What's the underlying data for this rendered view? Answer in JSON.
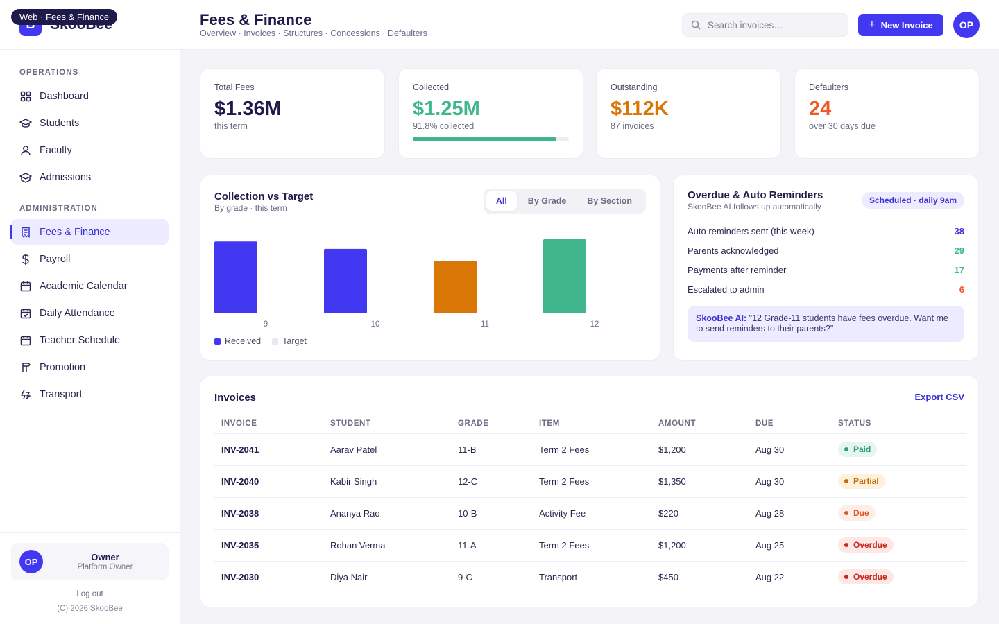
{
  "brand": {
    "logo_letter": "B",
    "name": "SkooBee",
    "web_tag": "Web · Fees & Finance"
  },
  "sidebar": {
    "sections": [
      {
        "heading": "OPERATIONS",
        "items": [
          {
            "label": "Dashboard",
            "icon": "grid-icon"
          },
          {
            "label": "Students",
            "icon": "graduation-cap-icon"
          },
          {
            "label": "Faculty",
            "icon": "person-icon"
          },
          {
            "label": "Admissions",
            "icon": "school-icon"
          }
        ]
      },
      {
        "heading": "ADMINISTRATION",
        "items": [
          {
            "label": "Fees & Finance",
            "icon": "receipt-icon",
            "active": true
          },
          {
            "label": "Payroll",
            "icon": "dollar-icon"
          },
          {
            "label": "Academic Calendar",
            "icon": "calendar-icon"
          },
          {
            "label": "Daily Attendance",
            "icon": "calendar-check-icon"
          },
          {
            "label": "Teacher Schedule",
            "icon": "calendar-icon"
          },
          {
            "label": "Promotion",
            "icon": "signpost-icon"
          },
          {
            "label": "Transport",
            "icon": "transport-icon"
          }
        ]
      }
    ],
    "user": {
      "initials": "OP",
      "name": "Owner",
      "role": "Platform Owner"
    },
    "logout_label": "Log out",
    "copyright": "(C) 2026 SkooBee"
  },
  "header": {
    "title": "Fees & Finance",
    "breadcrumb": "Overview · Invoices · Structures · Concessions · Defaulters",
    "search_placeholder": "Search invoices…",
    "new_button_label": "New Invoice",
    "avatar_initials": "OP"
  },
  "stats": [
    {
      "label": "Total Fees",
      "value": "$1.36M",
      "sub": "this term",
      "color": "#1e1b4b"
    },
    {
      "label": "Collected",
      "value": "$1.25M",
      "sub": "91.8% collected",
      "color": "#3fb68b",
      "progress": 0.918
    },
    {
      "label": "Outstanding",
      "value": "$112K",
      "sub": "87 invoices",
      "color": "#d97706"
    },
    {
      "label": "Defaulters",
      "value": "24",
      "sub": "over 30 days due",
      "color": "#f05a28"
    }
  ],
  "collection_chart": {
    "title": "Collection vs Target",
    "subtitle": "By grade · this term",
    "tabs": [
      {
        "label": "All",
        "active": true
      },
      {
        "label": "By Grade"
      },
      {
        "label": "By Section"
      }
    ],
    "legend": [
      {
        "label": "Received",
        "color": "#4338f2"
      },
      {
        "label": "Target",
        "color": "#e8e8f0"
      }
    ]
  },
  "chart_data": {
    "type": "bar",
    "categories": [
      "9",
      "10",
      "11",
      "12"
    ],
    "series": [
      {
        "name": "Received",
        "values": [
          97,
          87,
          71,
          100
        ]
      }
    ],
    "bar_colors": [
      "#4338f2",
      "#4338f2",
      "#d97706",
      "#3fb68b"
    ],
    "ylim": [
      0,
      100
    ],
    "grid": false
  },
  "reminders": {
    "title": "Overdue & Auto Reminders",
    "subtitle": "SkooBee AI follows up automatically",
    "badge": "Scheduled · daily 9am",
    "rows": [
      {
        "label": "Auto reminders sent (this week)",
        "value": "38",
        "color": "#3b32d6"
      },
      {
        "label": "Parents acknowledged",
        "value": "29",
        "color": "#3fb68b"
      },
      {
        "label": "Payments after reminder",
        "value": "17",
        "color": "#3fb68b"
      },
      {
        "label": "Escalated to admin",
        "value": "6",
        "color": "#f05a28"
      }
    ],
    "ai_prefix": "SkooBee AI:",
    "ai_message": " \"12 Grade-11 students have fees overdue. Want me to send reminders to their parents?\""
  },
  "invoices": {
    "title": "Invoices",
    "export_label": "Export CSV",
    "columns": [
      "INVOICE",
      "STUDENT",
      "GRADE",
      "ITEM",
      "AMOUNT",
      "DUE",
      "STATUS"
    ],
    "rows": [
      {
        "id": "INV-2041",
        "student": "Aarav Patel",
        "grade": "11-B",
        "item": "Term 2 Fees",
        "amount": "$1,200",
        "due": "Aug 30",
        "status": "Paid"
      },
      {
        "id": "INV-2040",
        "student": "Kabir Singh",
        "grade": "12-C",
        "item": "Term 2 Fees",
        "amount": "$1,350",
        "due": "Aug 30",
        "status": "Partial"
      },
      {
        "id": "INV-2038",
        "student": "Ananya Rao",
        "grade": "10-B",
        "item": "Activity Fee",
        "amount": "$220",
        "due": "Aug 28",
        "status": "Due"
      },
      {
        "id": "INV-2035",
        "student": "Rohan Verma",
        "grade": "11-A",
        "item": "Term 2 Fees",
        "amount": "$1,200",
        "due": "Aug 25",
        "status": "Overdue"
      },
      {
        "id": "INV-2030",
        "student": "Diya Nair",
        "grade": "9-C",
        "item": "Transport",
        "amount": "$450",
        "due": "Aug 22",
        "status": "Overdue"
      }
    ],
    "status_colors": {
      "Paid": {
        "bg": "#e6f6ef",
        "fg": "#2f9e74"
      },
      "Partial": {
        "bg": "#fdf1dd",
        "fg": "#c26a05"
      },
      "Due": {
        "bg": "#fdeee7",
        "fg": "#e0552a"
      },
      "Overdue": {
        "bg": "#fde8e6",
        "fg": "#c8261c"
      }
    }
  }
}
